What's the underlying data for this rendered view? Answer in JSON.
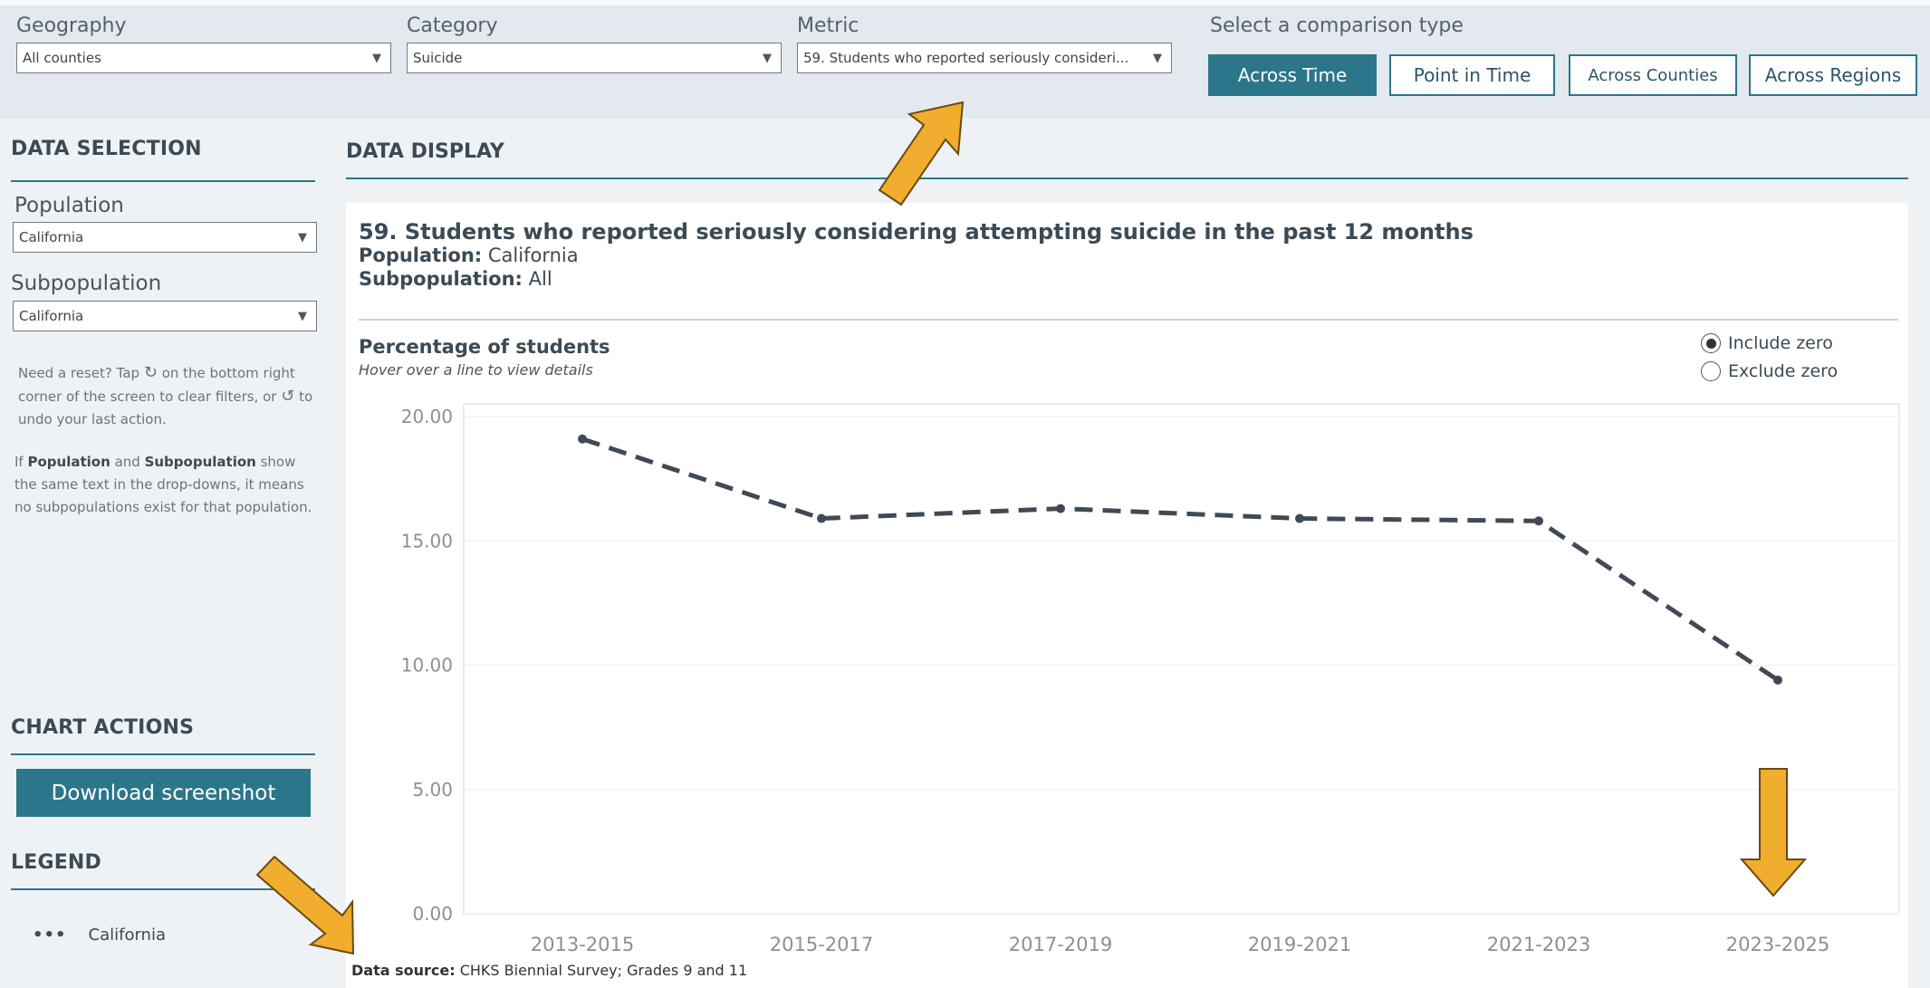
{
  "filters": {
    "geography": {
      "label": "Geography",
      "value": "All counties"
    },
    "category": {
      "label": "Category",
      "value": "Suicide"
    },
    "metric": {
      "label": "Metric",
      "value": "59. Students who reported seriously consideri..."
    }
  },
  "comparison": {
    "title": "Select a comparison type",
    "buttons": [
      "Across Time",
      "Point in Time",
      "Across Counties",
      "Across Regions"
    ],
    "active": "Across Time"
  },
  "sidebar": {
    "data_selection": "DATA SELECTION",
    "population": {
      "label": "Population",
      "value": "California"
    },
    "subpopulation": {
      "label": "Subpopulation",
      "value": "California"
    },
    "help1_a": "Need a reset? Tap",
    "help1_b": "on the bottom right corner of the screen to clear filters, or",
    "help1_c": "to undo your last action.",
    "help2_pre": "If",
    "help2_pop": "Population",
    "help2_and": "and",
    "help2_sub": "Subpopulation",
    "help2_post": "show the same text in the drop-downs, it means no subpopulations exist for that population.",
    "chart_actions": "CHART ACTIONS",
    "download": "Download screenshot",
    "legend_title": "LEGEND",
    "legend_item": "California"
  },
  "display": {
    "heading": "DATA DISPLAY",
    "title": "59. Students who reported seriously considering attempting suicide in the past 12 months",
    "population_label": "Population:",
    "population_value": "California",
    "subpopulation_label": "Subpopulation:",
    "subpopulation_value": "All",
    "chart_title": "Percentage of students",
    "chart_subtitle": "Hover over a line to view details",
    "include_zero": "Include zero",
    "exclude_zero": "Exclude zero",
    "source_label": "Data source:",
    "source_value": "CHKS Biennial Survey; Grades 9 and 11"
  },
  "colors": {
    "accent": "#2c7689",
    "line": "#3f4a56",
    "arrow": "#f0ad2e"
  },
  "chart_data": {
    "type": "line",
    "categories": [
      "2013-2015",
      "2015-2017",
      "2017-2019",
      "2019-2021",
      "2021-2023",
      "2023-2025"
    ],
    "series": [
      {
        "name": "California",
        "values": [
          19.1,
          15.9,
          16.3,
          15.9,
          15.8,
          9.4
        ]
      }
    ],
    "yticks": [
      "20.00",
      "15.00",
      "10.00",
      "5.00",
      "0.00"
    ],
    "ylim": [
      0,
      20
    ],
    "grid": true,
    "line_style": "dashed"
  }
}
